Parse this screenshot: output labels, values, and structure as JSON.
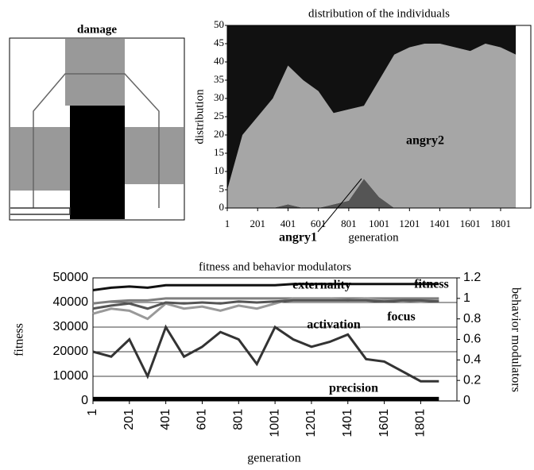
{
  "chart_data": [
    {
      "type": "image",
      "title": "damage"
    },
    {
      "type": "area",
      "title": "distribution of the individuals",
      "x_label": "generation",
      "y_label": "distribution",
      "x": [
        1,
        101,
        201,
        301,
        401,
        501,
        601,
        701,
        801,
        901,
        1001,
        1101,
        1201,
        1301,
        1401,
        1501,
        1601,
        1701,
        1801,
        1901
      ],
      "series": [
        {
          "name": "angry1",
          "color": "#555555",
          "values": [
            0,
            0,
            0,
            0,
            1,
            0,
            0,
            1,
            2,
            8,
            3,
            0,
            0,
            0,
            0,
            0,
            0,
            0,
            0,
            0
          ]
        },
        {
          "name": "angry2",
          "color": "#a6a6a6",
          "values": [
            5,
            20,
            25,
            30,
            38,
            35,
            32,
            25,
            25,
            20,
            32,
            42,
            44,
            45,
            45,
            44,
            43,
            45,
            44,
            42
          ]
        },
        {
          "color": "#111111",
          "values": [
            45,
            30,
            25,
            20,
            11,
            15,
            18,
            24,
            23,
            22,
            15,
            8,
            6,
            5,
            5,
            6,
            7,
            5,
            6,
            8
          ]
        }
      ],
      "xlim": [
        1,
        2000
      ],
      "xticks": [
        1,
        201,
        401,
        601,
        801,
        1001,
        1201,
        1401,
        1601,
        1801
      ],
      "ylim": [
        0,
        50
      ],
      "yticks": [
        0,
        5,
        10,
        15,
        20,
        25,
        30,
        35,
        40,
        45,
        50
      ]
    },
    {
      "type": "line",
      "title": "fitness and behavior modulators",
      "x_label": "generation",
      "y_label": "fitness",
      "y2_label": "behavior modulators",
      "x": [
        1,
        101,
        201,
        301,
        401,
        501,
        601,
        701,
        801,
        901,
        1001,
        1101,
        1201,
        1301,
        1401,
        1501,
        1601,
        1701,
        1801,
        1901
      ],
      "series": [
        {
          "name": "fitness",
          "color": "#111111",
          "values": [
            45000,
            46000,
            46500,
            46000,
            47000,
            47000,
            47000,
            47000,
            47000,
            47000,
            47000,
            47500,
            47500,
            47500,
            47500,
            47500,
            47500,
            47500,
            47500,
            47500
          ]
        },
        {
          "name": "externality",
          "color": "#7f7f7f",
          "axis": "y2",
          "values": [
            0.95,
            0.97,
            0.98,
            0.98,
            1,
            1,
            1,
            1,
            1,
            1,
            1,
            1,
            1,
            1,
            1,
            1,
            1,
            1,
            1,
            1
          ]
        },
        {
          "name": "activation",
          "color": "#999999",
          "axis": "y2",
          "values": [
            0.85,
            0.9,
            0.88,
            0.8,
            0.95,
            0.9,
            0.92,
            0.88,
            0.93,
            0.9,
            0.95,
            1,
            1,
            1,
            0.98,
            1,
            0.98,
            0.98,
            0.97,
            0.98
          ]
        },
        {
          "name": "focus",
          "color": "#555555",
          "axis": "y2",
          "values": [
            0.9,
            0.93,
            0.95,
            0.9,
            0.96,
            0.95,
            0.96,
            0.95,
            0.97,
            0.96,
            0.97,
            0.98,
            0.98,
            0.98,
            0.98,
            0.98,
            0.97,
            0.98,
            0.98,
            0.97
          ]
        },
        {
          "name": "precision",
          "color": "#000000",
          "axis": "y2",
          "values": [
            0.02,
            0.02,
            0.02,
            0.02,
            0.02,
            0.02,
            0.02,
            0.02,
            0.02,
            0.02,
            0.02,
            0.02,
            0.02,
            0.02,
            0.02,
            0.02,
            0.02,
            0.02,
            0.02,
            0.02
          ]
        },
        {
          "color": "#333333",
          "values": [
            20000,
            18000,
            25000,
            10000,
            30000,
            18000,
            22000,
            28000,
            25000,
            15000,
            30000,
            25000,
            22000,
            24000,
            27000,
            17000,
            16000,
            12000,
            8000,
            8000
          ]
        }
      ],
      "xlim": [
        1,
        2000
      ],
      "xticks": [
        1,
        201,
        401,
        601,
        801,
        1001,
        1201,
        1401,
        1601,
        1801
      ],
      "ylim": [
        0,
        50000
      ],
      "yticks": [
        0,
        10000,
        20000,
        30000,
        40000,
        50000
      ],
      "y2lim": [
        0,
        1.2
      ],
      "y2ticks": [
        0,
        0.2,
        0.4,
        0.6,
        0.8,
        1,
        1.2
      ],
      "grid": true
    }
  ]
}
